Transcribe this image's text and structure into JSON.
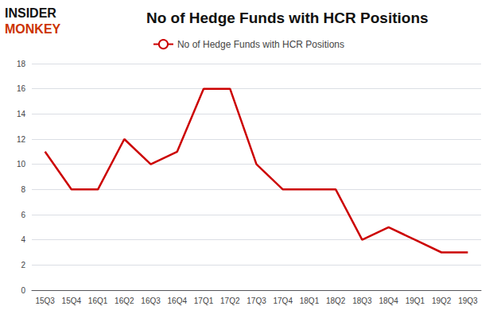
{
  "chart_data": {
    "type": "line",
    "title": "No of Hedge Funds with HCR Positions",
    "categories": [
      "15Q3",
      "15Q4",
      "16Q1",
      "16Q2",
      "16Q3",
      "16Q4",
      "17Q1",
      "17Q2",
      "17Q3",
      "17Q4",
      "18Q1",
      "18Q2",
      "18Q3",
      "18Q4",
      "19Q1",
      "19Q2",
      "19Q3"
    ],
    "series": [
      {
        "name": "No of Hedge Funds with HCR Positions",
        "color": "#cc0000",
        "values": [
          11,
          8,
          8,
          12,
          10,
          11,
          16,
          16,
          10,
          8,
          8,
          8,
          4,
          5,
          4,
          3,
          3
        ]
      }
    ],
    "ylim": [
      0,
      18
    ],
    "yticks": [
      0,
      2,
      4,
      6,
      8,
      10,
      12,
      14,
      16,
      18
    ],
    "grid": true,
    "annotations": [
      {
        "text": "INSIDER",
        "color": "#111111"
      },
      {
        "text": "MONKEY",
        "color": "#cc3300"
      }
    ]
  }
}
